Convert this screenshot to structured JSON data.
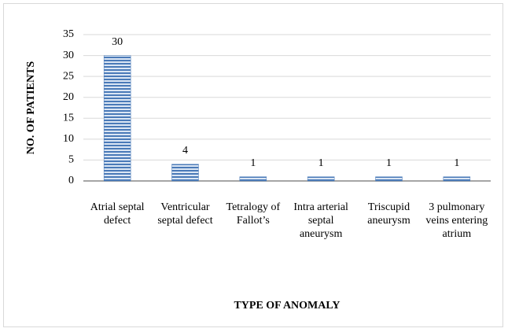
{
  "chart_data": {
    "type": "bar",
    "categories": [
      "Atrial septal defect",
      "Ventricular septal defect",
      "Tetralogy of Fallot’s",
      "Intra arterial septal aneurysm",
      "Triscupid aneurysm",
      "3 pulmonary veins entering atrium"
    ],
    "values": [
      30,
      4,
      1,
      1,
      1,
      1
    ],
    "color": "#4a7ab8",
    "ylim": [
      0,
      35
    ],
    "yticks": [
      0,
      5,
      10,
      15,
      20,
      25,
      30,
      35
    ],
    "grid": true,
    "y_label": "NO. OF PATIENTS",
    "x_label": "TYPE OF ANOMALY"
  }
}
